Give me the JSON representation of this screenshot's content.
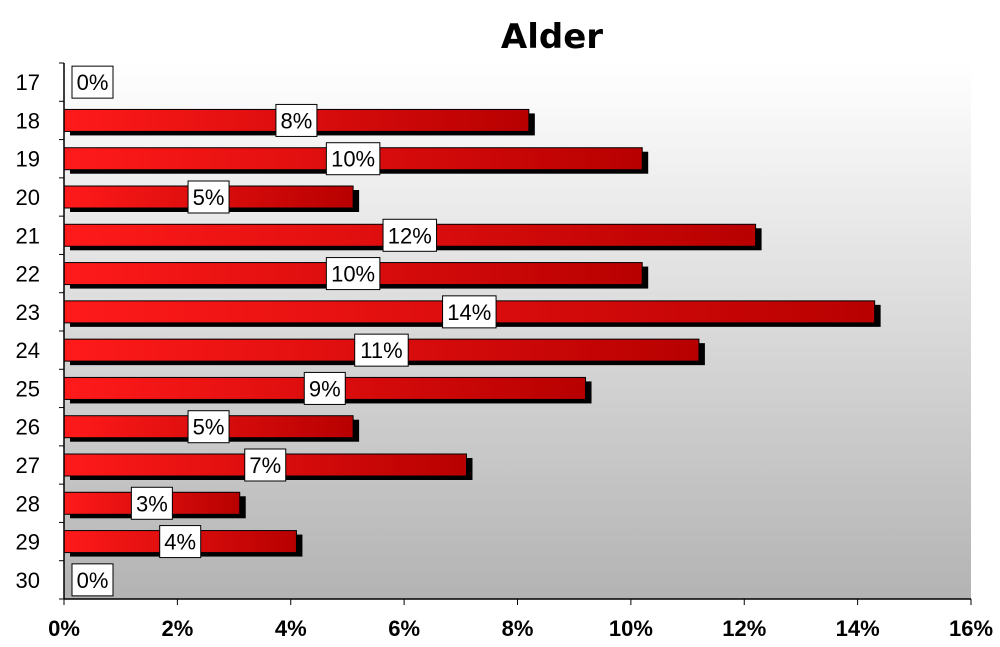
{
  "chart_data": {
    "type": "bar",
    "orientation": "horizontal",
    "title": "Alder",
    "categories": [
      "17",
      "18",
      "19",
      "20",
      "21",
      "22",
      "23",
      "24",
      "25",
      "26",
      "27",
      "28",
      "29",
      "30"
    ],
    "values": [
      0,
      8.2,
      10.2,
      5.1,
      12.2,
      10.2,
      14.3,
      11.2,
      9.2,
      5.1,
      7.1,
      3.1,
      4.1,
      0
    ],
    "data_labels": [
      "0%",
      "8%",
      "10%",
      "5%",
      "12%",
      "10%",
      "14%",
      "11%",
      "9%",
      "5%",
      "7%",
      "3%",
      "4%",
      "0%"
    ],
    "x_ticks": [
      "0%",
      "2%",
      "4%",
      "6%",
      "8%",
      "10%",
      "12%",
      "14%",
      "16%"
    ],
    "xlim": [
      0,
      16
    ],
    "xlabel": "",
    "ylabel": "",
    "grid": false,
    "legend": "none",
    "colors": {
      "bar_light": "#ff1a1a",
      "bar_dark": "#b80000",
      "shadow": "#000000",
      "plot_bg_top": "#ffffff",
      "plot_bg_bottom": "#b3b3b3"
    }
  }
}
